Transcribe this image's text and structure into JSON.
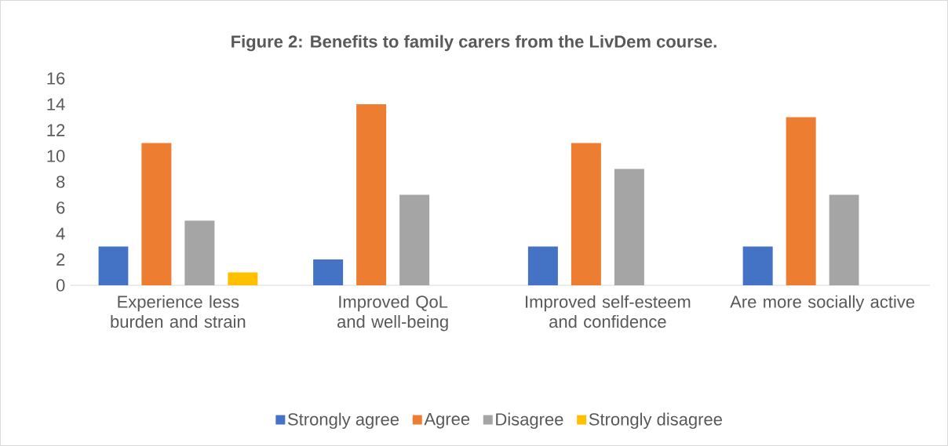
{
  "chart_data": {
    "type": "bar",
    "title": "Figure 2: Benefits to family carers from the LivDem course.",
    "categories": [
      "Experience less burden and strain",
      "Improved QoL and well-being",
      "Improved self-esteem and confidence",
      "Are more socially active"
    ],
    "series": [
      {
        "name": "Strongly agree",
        "color": "#4472c4",
        "values": [
          3,
          2,
          3,
          3
        ]
      },
      {
        "name": "Agree",
        "color": "#ed7d31",
        "values": [
          11,
          14,
          11,
          13
        ]
      },
      {
        "name": "Disagree",
        "color": "#a5a5a5",
        "values": [
          5,
          7,
          9,
          7
        ]
      },
      {
        "name": "Strongly disagree",
        "color": "#ffc000",
        "values": [
          1,
          null,
          null,
          null
        ]
      }
    ],
    "ylim": [
      0,
      16
    ],
    "yticks": [
      0,
      2,
      4,
      6,
      8,
      10,
      12,
      14,
      16
    ],
    "legend": "bottom"
  }
}
